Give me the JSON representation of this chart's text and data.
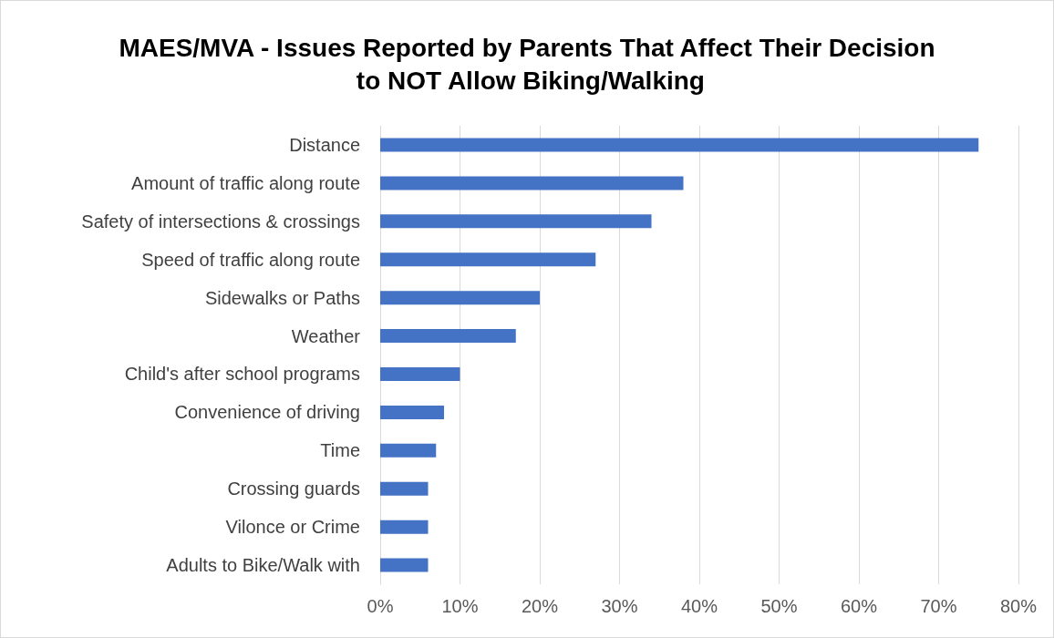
{
  "chart_data": {
    "type": "bar",
    "orientation": "horizontal",
    "title": "MAES/MVA - Issues Reported by Parents That Affect Their Decision to NOT Allow Biking/Walking",
    "categories": [
      "Distance",
      "Amount of traffic along route",
      "Safety of intersections & crossings",
      "Speed of traffic along route",
      "Sidewalks or Paths",
      "Weather",
      "Child's after school programs",
      "Convenience of driving",
      "Time",
      "Crossing guards",
      "Vilonce or Crime",
      "Adults to Bike/Walk with"
    ],
    "values": [
      75,
      38,
      34,
      27,
      20,
      17,
      10,
      8,
      7,
      6,
      6,
      6
    ],
    "color": "#4472c4",
    "xlim": [
      0,
      80
    ],
    "xticks": [
      {
        "value": 0,
        "label": "0%"
      },
      {
        "value": 10,
        "label": "10%"
      },
      {
        "value": 20,
        "label": "20%"
      },
      {
        "value": 30,
        "label": "30%"
      },
      {
        "value": 40,
        "label": "40%"
      },
      {
        "value": 50,
        "label": "50%"
      },
      {
        "value": 60,
        "label": "60%"
      },
      {
        "value": 70,
        "label": "70%"
      },
      {
        "value": 80,
        "label": "80%"
      }
    ],
    "grid": "x"
  }
}
